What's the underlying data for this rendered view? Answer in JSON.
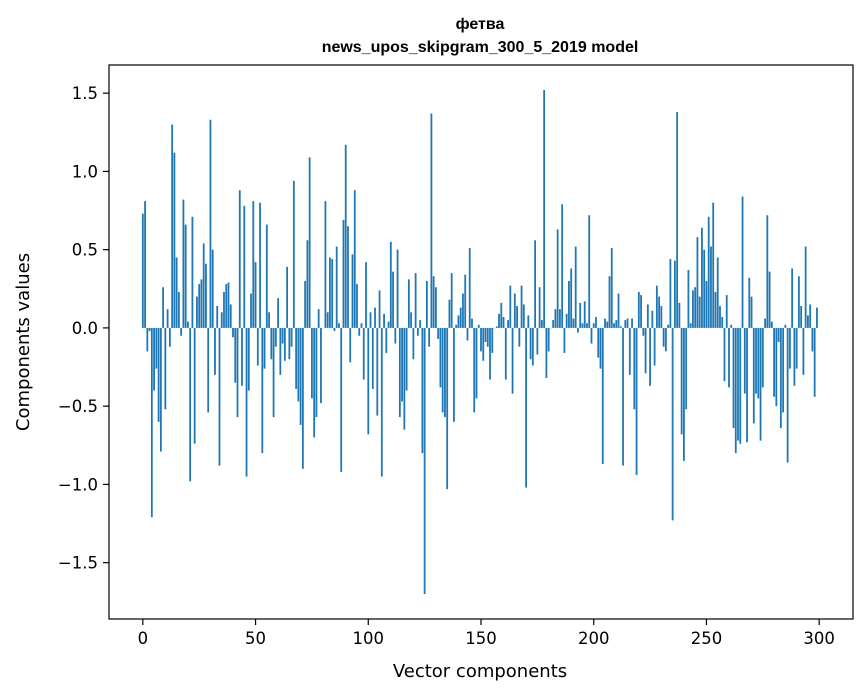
{
  "chart_data": {
    "type": "bar",
    "title": [
      "фетва",
      "news_upos_skipgram_300_5_2019 model"
    ],
    "xlabel": "Vector components",
    "ylabel": "Components values",
    "xlim": [
      -15,
      315
    ],
    "ylim": [
      -1.86,
      1.68
    ],
    "xticks": [
      0,
      50,
      100,
      150,
      200,
      250,
      300
    ],
    "yticks": [
      -1.5,
      -1.0,
      -0.5,
      0.0,
      0.5,
      1.0,
      1.5
    ],
    "ytick_labels": [
      "−1.5",
      "−1.0",
      "−0.5",
      "0.0",
      "0.5",
      "1.0",
      "1.5"
    ],
    "bar_color": "#1f77b4",
    "grid": false,
    "values": [
      0.73,
      0.81,
      -0.15,
      -0.02,
      -1.21,
      -0.4,
      -0.26,
      -0.6,
      -0.79,
      0.26,
      -0.52,
      0.12,
      -0.12,
      1.3,
      1.12,
      0.45,
      0.23,
      -0.05,
      0.82,
      0.66,
      0.04,
      -0.98,
      0.71,
      -0.74,
      0.2,
      0.28,
      0.31,
      0.54,
      0.41,
      -0.54,
      1.33,
      0.5,
      -0.3,
      0.14,
      -0.88,
      0.1,
      0.23,
      0.28,
      0.29,
      0.15,
      -0.06,
      -0.35,
      -0.57,
      0.88,
      -0.37,
      0.78,
      -0.95,
      -0.4,
      0.22,
      0.81,
      0.42,
      -0.24,
      0.8,
      -0.8,
      -0.26,
      0.66,
      0.1,
      -0.2,
      -0.57,
      -0.12,
      0.19,
      -0.3,
      -0.1,
      -0.21,
      0.39,
      -0.2,
      -0.12,
      0.94,
      -0.39,
      -0.47,
      -0.62,
      -0.9,
      0.3,
      0.56,
      1.09,
      -0.45,
      -0.7,
      -0.57,
      0.12,
      -0.48,
      0.0,
      0.81,
      0.1,
      0.45,
      0.44,
      -0.02,
      0.52,
      0.03,
      -0.92,
      0.69,
      1.17,
      0.65,
      -0.22,
      0.47,
      0.88,
      0.28,
      -0.05,
      0.03,
      -0.33,
      0.42,
      -0.68,
      0.1,
      -0.39,
      0.13,
      -0.56,
      0.24,
      -0.95,
      0.09,
      -0.16,
      0.04,
      0.55,
      0.36,
      -0.1,
      0.5,
      -0.57,
      -0.47,
      -0.65,
      -0.4,
      0.31,
      0.1,
      -0.2,
      0.35,
      -0.05,
      0.05,
      -0.8,
      -1.7,
      0.3,
      -0.12,
      1.37,
      0.33,
      0.26,
      -0.07,
      -0.38,
      -0.54,
      -0.57,
      -1.03,
      0.18,
      0.35,
      -0.6,
      0.02,
      0.08,
      0.13,
      0.22,
      0.34,
      -0.08,
      0.51,
      0.06,
      -0.54,
      -0.45,
      0.02,
      -0.15,
      -0.21,
      -0.09,
      -0.12,
      -0.33,
      -0.16,
      0.0,
      0.01,
      0.09,
      0.16,
      0.07,
      -0.33,
      0.05,
      0.27,
      -0.42,
      0.22,
      0.14,
      -0.12,
      0.27,
      0.15,
      -1.02,
      0.08,
      -0.2,
      -0.24,
      0.56,
      -0.17,
      0.26,
      0.05,
      1.52,
      -0.32,
      -0.15,
      0.0,
      0.05,
      0.12,
      0.63,
      0.12,
      0.79,
      -0.16,
      0.09,
      0.3,
      0.38,
      0.06,
      0.52,
      -0.03,
      0.16,
      0.03,
      0.17,
      0.03,
      0.72,
      -0.1,
      0.03,
      0.07,
      -0.19,
      -0.26,
      -0.87,
      0.06,
      0.04,
      0.33,
      0.51,
      0.03,
      0.05,
      0.22,
      0.01,
      -0.88,
      0.05,
      0.06,
      -0.3,
      0.06,
      -0.52,
      -0.94,
      0.23,
      0.21,
      -0.05,
      -0.29,
      0.15,
      -0.37,
      0.11,
      -0.24,
      0.27,
      0.2,
      0.14,
      -0.12,
      -0.15,
      0.02,
      0.44,
      -1.23,
      0.43,
      1.38,
      0.16,
      -0.68,
      -0.85,
      -0.52,
      0.37,
      0.03,
      0.24,
      0.26,
      0.58,
      0.2,
      0.64,
      0.5,
      0.3,
      0.71,
      0.52,
      0.8,
      0.23,
      0.45,
      0.14,
      0.07,
      -0.34,
      0.21,
      -0.38,
      0.02,
      -0.64,
      -0.8,
      -0.72,
      -0.74,
      0.84,
      -0.42,
      -0.73,
      0.32,
      0.2,
      -0.61,
      -0.42,
      -0.45,
      -0.72,
      -0.38,
      0.06,
      0.72,
      0.36,
      0.04,
      -0.44,
      -0.5,
      -0.09,
      -0.64,
      -0.54,
      0.02,
      -0.86,
      -0.26,
      0.38,
      -0.37,
      -0.26,
      0.33,
      0.14,
      -0.3,
      0.52,
      0.08,
      0.15,
      -0.15,
      -0.44,
      0.13
    ]
  }
}
